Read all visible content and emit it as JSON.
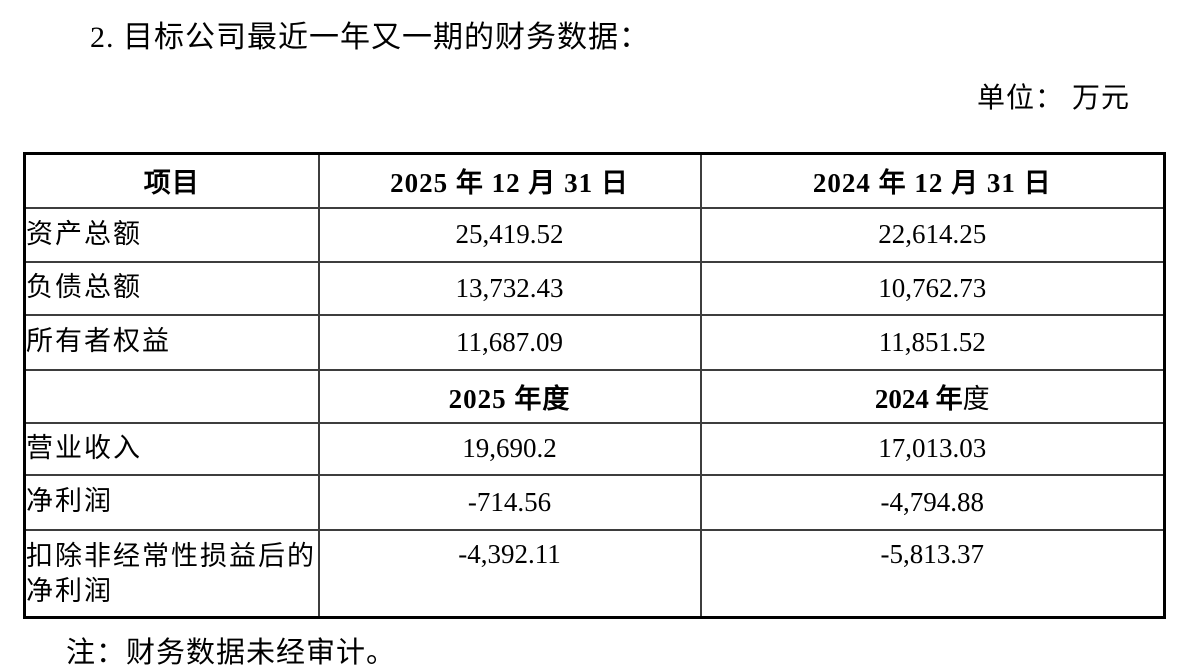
{
  "page": {
    "title": "2. 目标公司最近一年又一期的财务数据：",
    "unit_label": "单位： 万元",
    "note": "注：财务数据未经审计。"
  },
  "table": {
    "columns": [
      "项目",
      "2025 年 12 月 31 日",
      "2024 年 12 月 31 日"
    ],
    "balance_rows": [
      {
        "label": "资产总额",
        "v2025": "25,419.52",
        "v2024": "22,614.25"
      },
      {
        "label": "负债总额",
        "v2025": "13,732.43",
        "v2024": "10,762.73"
      },
      {
        "label": "所有者权益",
        "v2025": "11,687.09",
        "v2024": "11,851.52"
      }
    ],
    "period_header": {
      "label": "",
      "y2025": "2025 年度",
      "y2024_bold": "2024 年",
      "y2024_tail": "度"
    },
    "income_rows": [
      {
        "label": "营业收入",
        "v2025": "19,690.2",
        "v2024": "17,013.03"
      },
      {
        "label": "净利润",
        "v2025": "-714.56",
        "v2024": "-4,794.88"
      },
      {
        "label": "扣除非经常性损益后的净利润",
        "v2025": "-4,392.11",
        "v2024": "-5,813.37"
      }
    ]
  }
}
